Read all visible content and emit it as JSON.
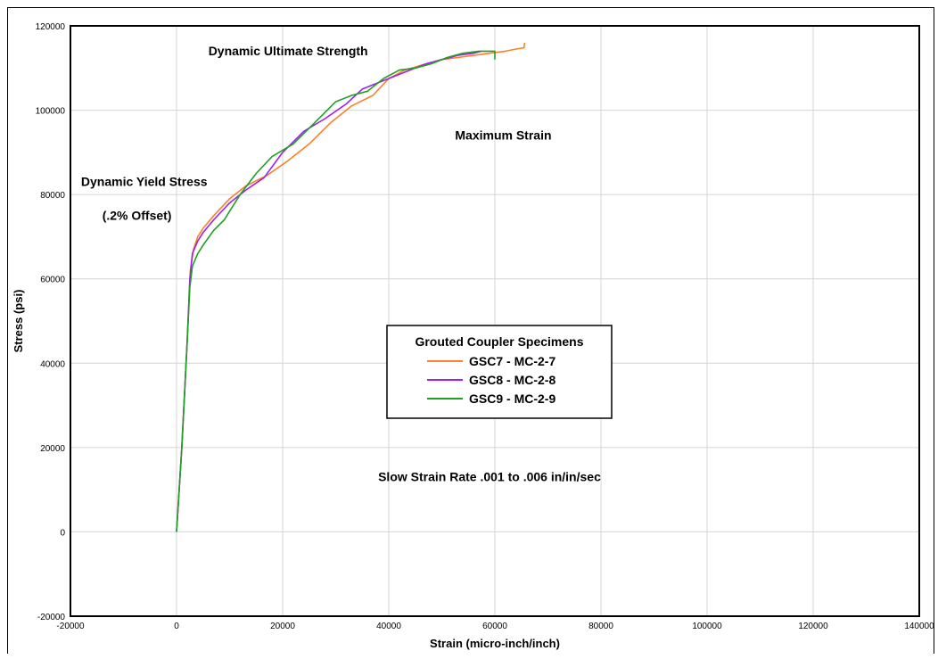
{
  "chart_data": {
    "type": "line",
    "title": "",
    "xlabel": "Strain (micro-inch/inch)",
    "ylabel": "Stress (psi)",
    "xlim": [
      -20000,
      140000
    ],
    "ylim": [
      -20000,
      120000
    ],
    "xticks": [
      -20000,
      0,
      20000,
      40000,
      60000,
      80000,
      100000,
      120000,
      140000
    ],
    "yticks": [
      -20000,
      0,
      20000,
      40000,
      60000,
      80000,
      100000,
      120000
    ],
    "grid": true,
    "legend": {
      "title": "Grouted Coupler Specimens",
      "placement": "center"
    },
    "annotations": [
      {
        "text": "Dynamic Ultimate Strength",
        "x": 6000,
        "y": 113000
      },
      {
        "text": "Maximum Strain",
        "x": 52500,
        "y": 93000
      },
      {
        "text": "Dynamic Yield Stress",
        "x": -18000,
        "y": 82000
      },
      {
        "text": "(.2% Offset)",
        "x": -14000,
        "y": 74000
      },
      {
        "text": "Slow Strain Rate .001 to .006 in/in/sec",
        "x": 38000,
        "y": 12000
      }
    ],
    "series": [
      {
        "name": "GSC7 - MC-2-7",
        "color": "#ff7f27",
        "x": [
          0,
          1000,
          2000,
          2600,
          3200,
          4000,
          5000,
          7000,
          10000,
          13000,
          17000,
          21000,
          25000,
          29000,
          33000,
          37000,
          40000,
          43000,
          47000,
          50000,
          53000,
          56000,
          59000,
          62000,
          64000,
          65500,
          65600
        ],
        "y": [
          0,
          20000,
          45000,
          62000,
          67000,
          70000,
          72000,
          75000,
          79000,
          82000,
          84500,
          88000,
          92000,
          97000,
          101000,
          103500,
          107500,
          109500,
          111000,
          112000,
          112500,
          113000,
          113500,
          114000,
          114500,
          114800,
          116000
        ]
      },
      {
        "name": "GSC8 - MC-2-8",
        "color": "#a020f0",
        "x": [
          0,
          1000,
          2000,
          2500,
          3000,
          4000,
          5000,
          7000,
          10000,
          13000,
          16500,
          20000,
          24000,
          28000,
          32000,
          35000,
          38000,
          41000,
          44000,
          47000,
          50000,
          53000,
          56000,
          57500
        ],
        "y": [
          0,
          20000,
          45000,
          60000,
          66000,
          69000,
          71000,
          74000,
          78000,
          81000,
          84000,
          90000,
          95000,
          98000,
          101500,
          105000,
          106500,
          108000,
          109500,
          111000,
          112000,
          113000,
          113500,
          114000
        ]
      },
      {
        "name": "GSC9 - MC-2-9",
        "color": "#20a020",
        "x": [
          0,
          1000,
          2000,
          2500,
          3000,
          4000,
          5000,
          7000,
          9000,
          12000,
          15000,
          18000,
          22000,
          26000,
          30000,
          33000,
          36000,
          39000,
          42000,
          45000,
          48000,
          51000,
          54000,
          57000,
          60000,
          60000
        ],
        "y": [
          0,
          20000,
          45000,
          58000,
          63000,
          66000,
          68000,
          71500,
          74000,
          80000,
          85000,
          89000,
          92000,
          97000,
          102000,
          103500,
          104500,
          107500,
          109500,
          110000,
          111000,
          112500,
          113500,
          114000,
          114000,
          112000
        ]
      }
    ]
  }
}
